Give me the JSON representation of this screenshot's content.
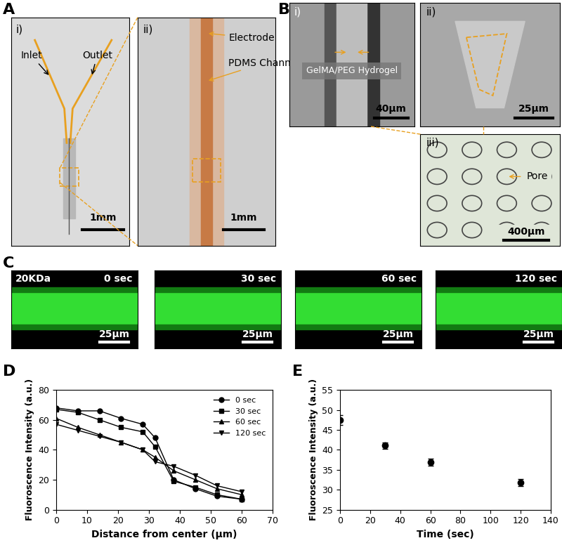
{
  "panels": {
    "A": {
      "label": "A",
      "i": {
        "label": "i)",
        "inlet": "Inlet",
        "outlet": "Outlet",
        "scale_bar": "1mm"
      },
      "ii": {
        "label": "ii)",
        "electrode": "Electrode",
        "channel": "PDMS Channel",
        "scale_bar": "1mm"
      }
    },
    "B": {
      "label": "B",
      "i": {
        "label": "i)",
        "hydrogel": "GelMA/PEG Hydrogel",
        "scale_bar": "40µm"
      },
      "ii": {
        "label": "ii)",
        "scale_bar": "25µm"
      },
      "iii": {
        "label": "iii)",
        "pore": "Pore",
        "scale_bar": "400µm"
      }
    },
    "C": {
      "label": "C",
      "molecule": "20KDa",
      "frames": [
        {
          "time": "0 sec",
          "scale_bar": "25µm"
        },
        {
          "time": "30 sec",
          "scale_bar": "25µm"
        },
        {
          "time": "60 sec",
          "scale_bar": "25µm"
        },
        {
          "time": "120 sec",
          "scale_bar": "25µm"
        }
      ]
    }
  },
  "chart_data": [
    {
      "panel_label": "D",
      "type": "line",
      "x_label": "Distance from center (µm)",
      "y_label": "Fluoroscence Intensity (a.u.)",
      "x": [
        0,
        7,
        14,
        21,
        28,
        32,
        38,
        45,
        52,
        60
      ],
      "series": [
        {
          "name": "0 sec",
          "color": "#000000",
          "marker": "circle",
          "values": [
            68,
            66,
            66,
            61,
            57,
            48,
            20,
            14,
            9,
            7
          ]
        },
        {
          "name": "30 sec",
          "color": "#000000",
          "marker": "square",
          "values": [
            67,
            65,
            60,
            55,
            52,
            42,
            19,
            15,
            10,
            7
          ]
        },
        {
          "name": "60 sec",
          "color": "#000000",
          "marker": "triangle_up",
          "values": [
            61,
            55,
            50,
            45,
            40,
            35,
            26,
            20,
            14,
            10
          ]
        },
        {
          "name": "120 sec",
          "color": "#000000",
          "marker": "triangle_down",
          "values": [
            57,
            53,
            49,
            45,
            40,
            32,
            29,
            23,
            16,
            12
          ]
        }
      ],
      "xlim": [
        0,
        70
      ],
      "xticks": [
        0,
        10,
        20,
        30,
        40,
        50,
        60,
        70
      ],
      "ylim": [
        0,
        80
      ],
      "yticks": [
        0,
        20,
        40,
        60,
        80
      ],
      "legend": "upper right"
    },
    {
      "panel_label": "E",
      "type": "scatter",
      "x_label": "Time (sec)",
      "y_label": "Fluoroscence Intensity (a.u.)",
      "x": [
        0,
        30,
        60,
        120
      ],
      "values": [
        47.4,
        41.1,
        36.9,
        31.8
      ],
      "errors": [
        1.2,
        0.8,
        0.8,
        0.9
      ],
      "color": "#000000",
      "marker": "circle",
      "xlim": [
        0,
        140
      ],
      "xticks": [
        0,
        20,
        40,
        60,
        80,
        100,
        120,
        140
      ],
      "ylim": [
        25,
        55
      ],
      "yticks": [
        25,
        30,
        35,
        40,
        45,
        50,
        55
      ]
    }
  ]
}
